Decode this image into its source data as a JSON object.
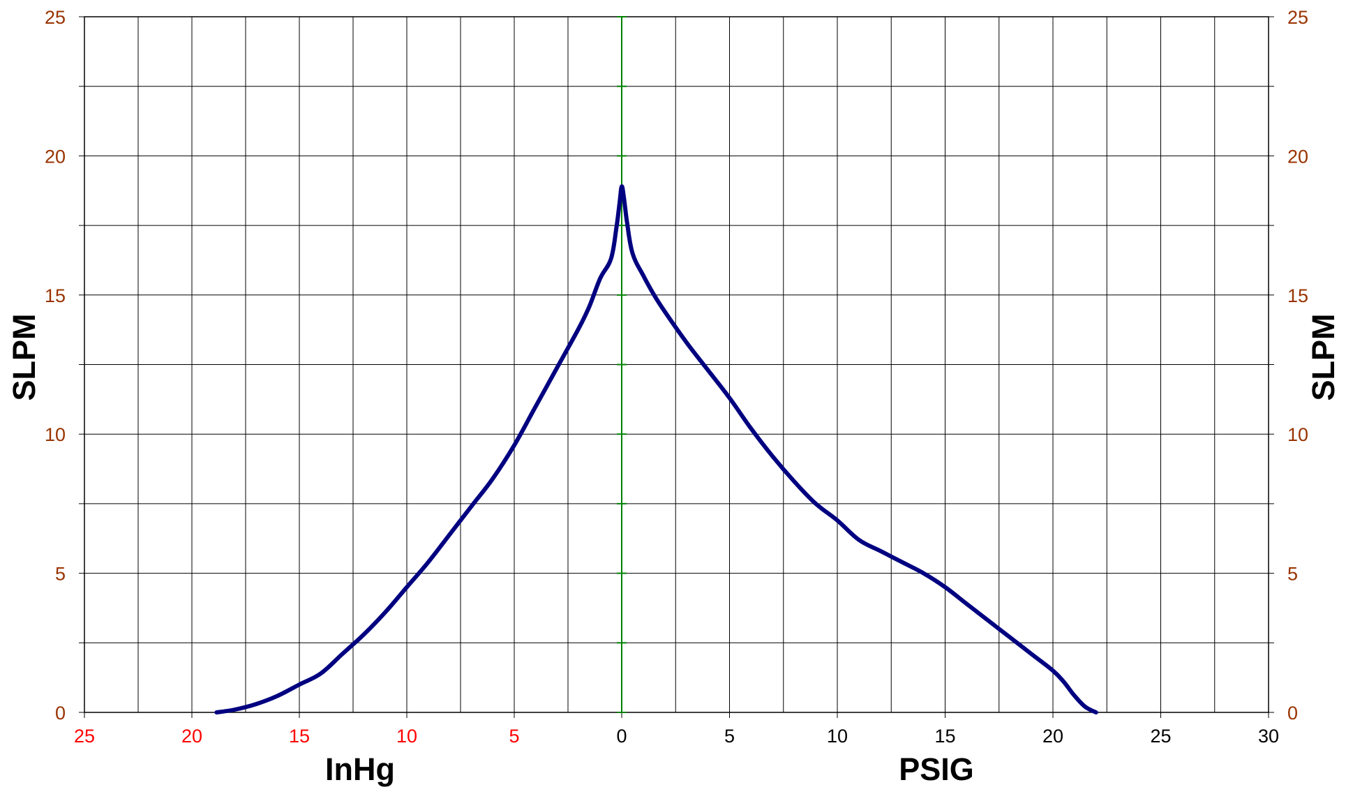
{
  "chart_data": {
    "type": "line",
    "title": "",
    "xlabels": {
      "left": "InHg",
      "right": "PSIG"
    },
    "ylabel_left": "SLPM",
    "ylabel_right": "SLPM",
    "ylim": [
      0,
      25
    ],
    "y_ticks": [
      "0",
      "5",
      "10",
      "15",
      "20",
      "25"
    ],
    "vacuum_ticks": [
      "25",
      "20",
      "15",
      "10",
      "5"
    ],
    "pressure_ticks": [
      "0",
      "5",
      "10",
      "15",
      "20",
      "25",
      "30"
    ],
    "grid": true,
    "series": [
      {
        "vacuum_inhg": [
          0,
          0.1,
          0.25,
          0.5,
          1,
          1.5,
          2,
          3,
          4,
          5,
          6,
          7,
          8,
          9,
          10,
          11,
          12,
          13,
          14,
          15,
          16,
          17,
          18,
          18.85
        ],
        "vacuum_slpm": [
          18.9,
          18.3,
          17.4,
          16.3,
          15.6,
          14.6,
          13.8,
          12.4,
          11.0,
          9.6,
          8.4,
          7.4,
          6.4,
          5.4,
          4.5,
          3.6,
          2.8,
          2.1,
          1.4,
          1.0,
          0.6,
          0.3,
          0.1,
          0.0
        ],
        "pressure_psig": [
          0,
          0.1,
          0.25,
          0.5,
          1,
          1.5,
          2,
          3,
          4,
          5,
          6,
          7,
          8,
          9,
          10,
          11,
          12,
          13,
          14,
          15,
          16,
          17,
          18,
          19,
          20,
          20.5,
          21,
          21.5,
          22
        ],
        "pressure_slpm": [
          18.9,
          18.5,
          17.6,
          16.5,
          15.7,
          15.0,
          14.4,
          13.3,
          12.3,
          11.3,
          10.2,
          9.2,
          8.3,
          7.5,
          6.9,
          6.2,
          5.8,
          5.4,
          5.0,
          4.5,
          3.9,
          3.3,
          2.7,
          2.1,
          1.5,
          1.1,
          0.6,
          0.2,
          0.0
        ],
        "color": "#000080"
      }
    ]
  },
  "colors": {
    "grid": "#000000",
    "zero_line": "#008000",
    "curve": "#000080",
    "vacuum_tick_labels": "#ff0000",
    "y_tick_labels": "#993300",
    "pressure_tick_labels": "#000000"
  }
}
